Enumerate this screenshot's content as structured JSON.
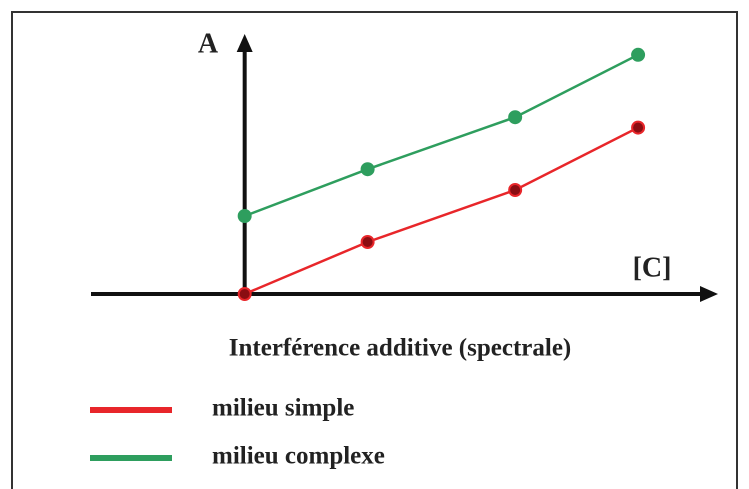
{
  "chart_data": {
    "type": "line",
    "title": "Interférence additive (spectrale)",
    "ylabel": "A",
    "xlabel": "[C]",
    "x": [
      0,
      1,
      2.2,
      3.2
    ],
    "xlim": [
      -1.25,
      3.85
    ],
    "ylim": [
      0,
      5
    ],
    "series": [
      {
        "name": "milieu simple",
        "color": "#e8262a",
        "values": [
          0,
          1,
          2,
          3.2
        ]
      },
      {
        "name": "milieu complexe",
        "color": "#2e9e5e",
        "values": [
          1.5,
          2.4,
          3.4,
          4.6
        ]
      }
    ]
  }
}
